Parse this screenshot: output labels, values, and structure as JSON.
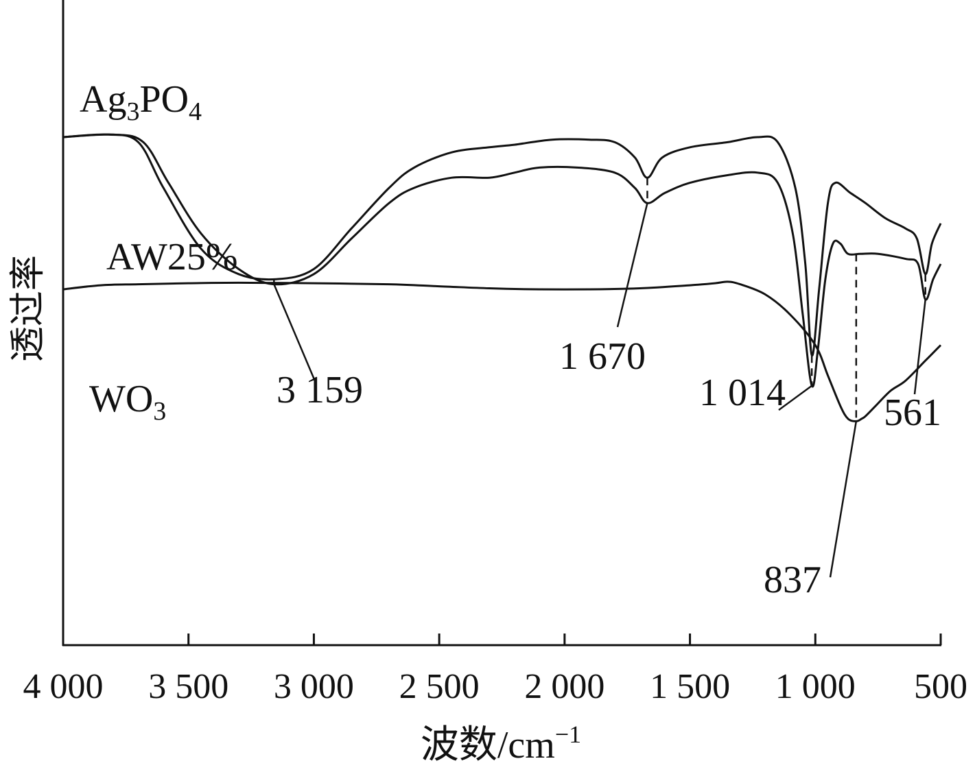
{
  "chart_data": {
    "type": "line",
    "title": "",
    "xlabel": "波数/cm",
    "xlabel_superscript": "−1",
    "ylabel": "透过率",
    "xlim": [
      4000,
      500
    ],
    "x_reversed": true,
    "yaxis": "arbitrary-offset",
    "x_ticks": [
      4000,
      3500,
      3000,
      2500,
      2000,
      1500,
      1000,
      500
    ],
    "x_tick_labels": [
      "4 000",
      "3 500",
      "3 000",
      "2 500",
      "2 000",
      "1 500",
      "1 000",
      "500"
    ],
    "series": [
      {
        "name": "Ag3PO4",
        "label_main": "Ag",
        "label_sub1": "3",
        "label_mid": "PO",
        "label_sub2": "4",
        "points": [
          [
            4000,
            100
          ],
          [
            3820,
            100.5
          ],
          [
            3700,
            99
          ],
          [
            3600,
            90
          ],
          [
            3450,
            78
          ],
          [
            3300,
            73
          ],
          [
            3150,
            72
          ],
          [
            3000,
            74
          ],
          [
            2850,
            82
          ],
          [
            2700,
            90
          ],
          [
            2600,
            94
          ],
          [
            2450,
            97
          ],
          [
            2300,
            98
          ],
          [
            2200,
            98.5
          ],
          [
            2050,
            99.5
          ],
          [
            1900,
            99.5
          ],
          [
            1800,
            99
          ],
          [
            1720,
            96
          ],
          [
            1670,
            92
          ],
          [
            1610,
            96
          ],
          [
            1500,
            98
          ],
          [
            1350,
            99
          ],
          [
            1230,
            100
          ],
          [
            1150,
            99
          ],
          [
            1080,
            90
          ],
          [
            1040,
            75
          ],
          [
            1014,
            57
          ],
          [
            985,
            70
          ],
          [
            950,
            87
          ],
          [
            920,
            91
          ],
          [
            860,
            89
          ],
          [
            800,
            87
          ],
          [
            720,
            84
          ],
          [
            640,
            82
          ],
          [
            595,
            80
          ],
          [
            561,
            73
          ],
          [
            535,
            79
          ],
          [
            500,
            83
          ]
        ]
      },
      {
        "name": "AW25%",
        "points": [
          [
            4000,
            100
          ],
          [
            3800,
            100.5
          ],
          [
            3680,
            99
          ],
          [
            3580,
            91
          ],
          [
            3450,
            81
          ],
          [
            3300,
            74
          ],
          [
            3159,
            71
          ],
          [
            3000,
            73
          ],
          [
            2850,
            80
          ],
          [
            2700,
            87
          ],
          [
            2600,
            90
          ],
          [
            2450,
            92
          ],
          [
            2300,
            92
          ],
          [
            2200,
            93
          ],
          [
            2100,
            94
          ],
          [
            1950,
            94
          ],
          [
            1800,
            93
          ],
          [
            1720,
            90
          ],
          [
            1670,
            87
          ],
          [
            1600,
            89
          ],
          [
            1500,
            91
          ],
          [
            1350,
            92.5
          ],
          [
            1230,
            93
          ],
          [
            1150,
            91
          ],
          [
            1090,
            81
          ],
          [
            1050,
            65
          ],
          [
            1014,
            51
          ],
          [
            990,
            58
          ],
          [
            960,
            72
          ],
          [
            930,
            79
          ],
          [
            900,
            79
          ],
          [
            870,
            77
          ],
          [
            820,
            77
          ],
          [
            750,
            77
          ],
          [
            640,
            76
          ],
          [
            590,
            75
          ],
          [
            561,
            68
          ],
          [
            530,
            72
          ],
          [
            500,
            75
          ]
        ]
      },
      {
        "name": "WO3",
        "label_main": "WO",
        "label_sub1": "3",
        "label_mid": "",
        "label_sub2": "",
        "points": [
          [
            4000,
            70
          ],
          [
            3850,
            70.8
          ],
          [
            3700,
            71
          ],
          [
            3500,
            71.2
          ],
          [
            3300,
            71.3
          ],
          [
            3000,
            71.2
          ],
          [
            2700,
            71
          ],
          [
            2500,
            70.6
          ],
          [
            2300,
            70.2
          ],
          [
            2100,
            70
          ],
          [
            1900,
            70
          ],
          [
            1700,
            70.2
          ],
          [
            1500,
            70.8
          ],
          [
            1400,
            71.2
          ],
          [
            1350,
            71.5
          ],
          [
            1300,
            71
          ],
          [
            1200,
            69
          ],
          [
            1100,
            65
          ],
          [
            1000,
            59
          ],
          [
            950,
            53
          ],
          [
            900,
            47
          ],
          [
            870,
            44.5
          ],
          [
            837,
            44
          ],
          [
            815,
            44.5
          ],
          [
            800,
            45
          ],
          [
            760,
            47
          ],
          [
            700,
            50
          ],
          [
            640,
            52
          ],
          [
            560,
            56
          ],
          [
            500,
            59
          ]
        ]
      }
    ],
    "annotations": [
      {
        "label": "3 159",
        "x": 3159
      },
      {
        "label": "1 670",
        "x": 1670
      },
      {
        "label": "1 014",
        "x": 1014
      },
      {
        "label": "837",
        "x": 837
      },
      {
        "label": "561",
        "x": 561
      }
    ]
  }
}
